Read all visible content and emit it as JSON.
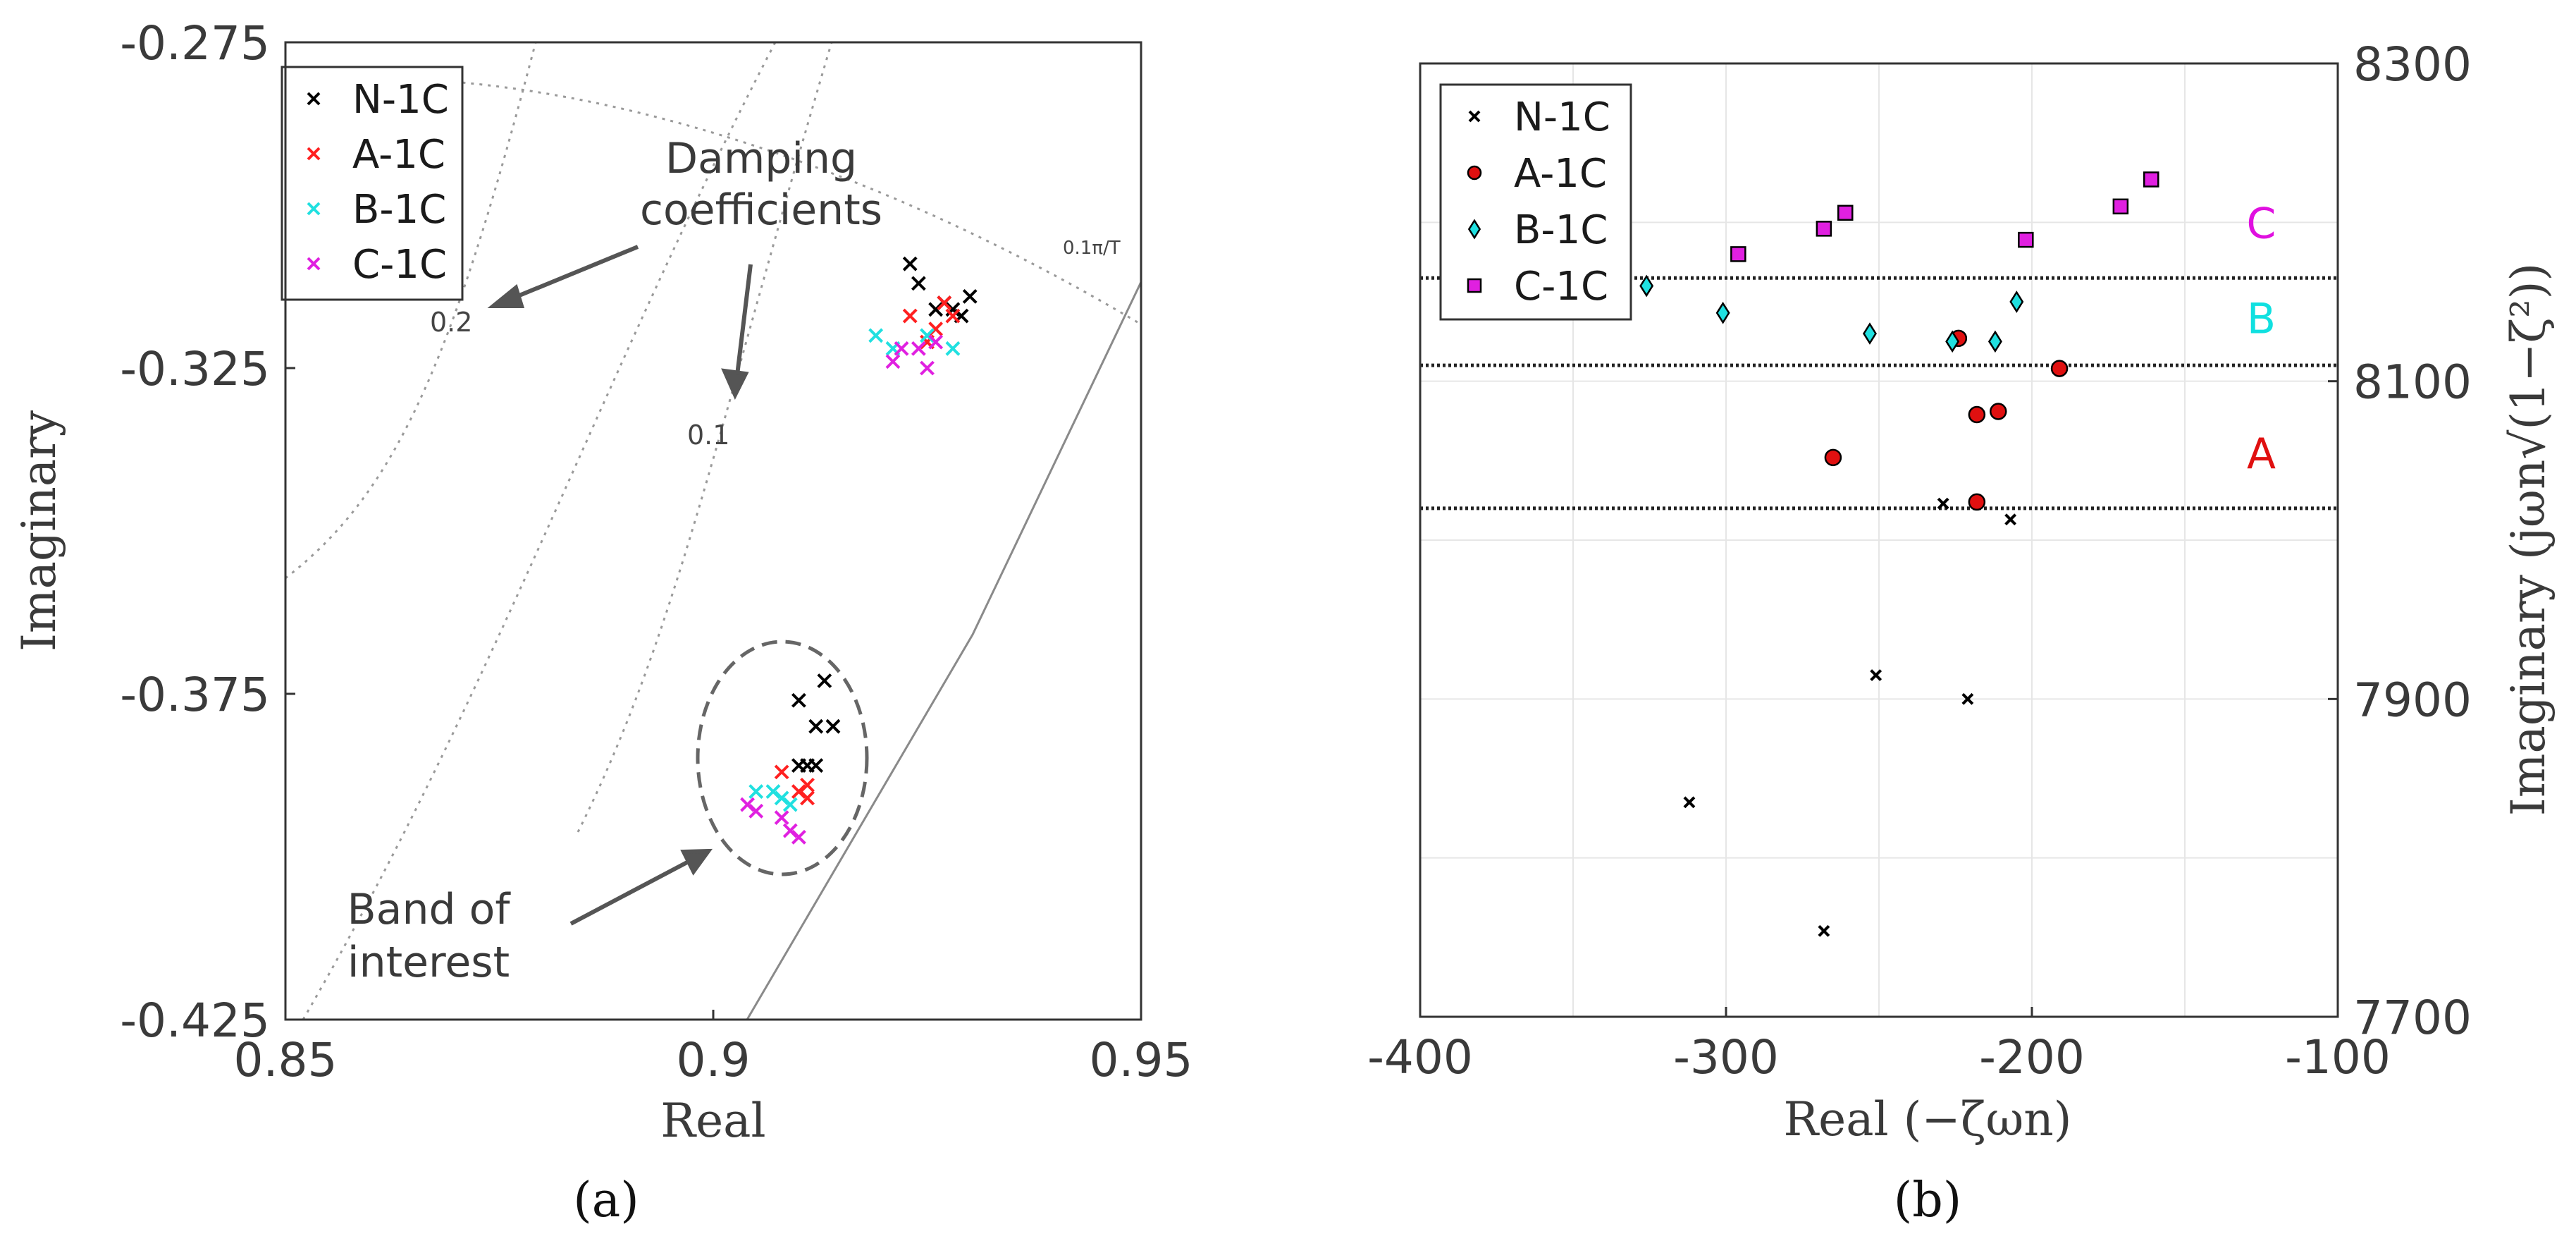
{
  "chart_data": [
    {
      "type": "scatter",
      "panel_label": "(a)",
      "xlabel": "Real",
      "ylabel": "Imaginary",
      "xlim": [
        0.85,
        0.95
      ],
      "ylim": [
        -0.425,
        -0.275
      ],
      "xticks": [
        0.85,
        0.9,
        0.95
      ],
      "xtick_labels": [
        "0.85",
        "0.9",
        "0.95"
      ],
      "yticks": [
        -0.275,
        -0.325,
        -0.375,
        -0.425
      ],
      "ytick_labels": [
        "-0.275",
        "-0.325",
        "-0.375",
        "-0.425"
      ],
      "legend_position": "top-left",
      "series": [
        {
          "name": "N-1C",
          "color": "#000000",
          "marker": "x",
          "points": [
            [
              0.923,
              -0.309
            ],
            [
              0.924,
              -0.312
            ],
            [
              0.927,
              -0.315
            ],
            [
              0.928,
              -0.316
            ],
            [
              0.929,
              -0.317
            ],
            [
              0.93,
              -0.314
            ],
            [
              0.926,
              -0.316
            ],
            [
              0.913,
              -0.373
            ],
            [
              0.91,
              -0.376
            ],
            [
              0.912,
              -0.38
            ],
            [
              0.914,
              -0.38
            ],
            [
              0.911,
              -0.386
            ],
            [
              0.912,
              -0.386
            ],
            [
              0.91,
              -0.386
            ]
          ]
        },
        {
          "name": "A-1C",
          "color": "#ff2020",
          "marker": "x",
          "points": [
            [
              0.923,
              -0.317
            ],
            [
              0.927,
              -0.315
            ],
            [
              0.928,
              -0.317
            ],
            [
              0.926,
              -0.319
            ],
            [
              0.925,
              -0.321
            ],
            [
              0.908,
              -0.387
            ],
            [
              0.911,
              -0.389
            ],
            [
              0.91,
              -0.39
            ],
            [
              0.911,
              -0.391
            ]
          ]
        },
        {
          "name": "B-1C",
          "color": "#20e0e0",
          "marker": "x",
          "points": [
            [
              0.919,
              -0.32
            ],
            [
              0.921,
              -0.322
            ],
            [
              0.925,
              -0.32
            ],
            [
              0.928,
              -0.322
            ],
            [
              0.905,
              -0.39
            ],
            [
              0.907,
              -0.39
            ],
            [
              0.908,
              -0.391
            ],
            [
              0.909,
              -0.392
            ]
          ]
        },
        {
          "name": "C-1C",
          "color": "#e020e0",
          "marker": "x",
          "points": [
            [
              0.921,
              -0.324
            ],
            [
              0.922,
              -0.322
            ],
            [
              0.924,
              -0.322
            ],
            [
              0.925,
              -0.325
            ],
            [
              0.926,
              -0.321
            ],
            [
              0.904,
              -0.392
            ],
            [
              0.905,
              -0.393
            ],
            [
              0.908,
              -0.394
            ],
            [
              0.909,
              -0.396
            ],
            [
              0.91,
              -0.397
            ]
          ]
        }
      ],
      "annotations": {
        "damping_coefficients": [
          "Damping",
          "coefficients"
        ],
        "band_of_interest": [
          "Band of",
          "interest"
        ],
        "damping_0_2": "0.2",
        "damping_0_1": "0.1",
        "freq_line": "0.1π/T"
      }
    },
    {
      "type": "scatter",
      "panel_label": "(b)",
      "xlabel": "Real (−ζωn)",
      "ylabel": "Imaginary (jωn√(1−ζ²))",
      "xlim": [
        -400,
        -100
      ],
      "ylim": [
        7700,
        8300
      ],
      "xticks": [
        -400,
        -300,
        -200,
        -100
      ],
      "xtick_labels": [
        "-400",
        "-300",
        "-200",
        "-100"
      ],
      "yticks": [
        7700,
        7900,
        8100,
        8300
      ],
      "ytick_labels": [
        "7700",
        "7900",
        "8100",
        "8300"
      ],
      "legend_position": "top-left",
      "band_boundaries": [
        8020,
        8110,
        8165
      ],
      "band_labels": [
        {
          "label": "A",
          "color": "#e01010",
          "y": 8055
        },
        {
          "label": "B",
          "color": "#10e0e0",
          "y": 8140
        },
        {
          "label": "C",
          "color": "#e010e0",
          "y": 8200
        }
      ],
      "series": [
        {
          "name": "N-1C",
          "color": "#000000",
          "marker": "x",
          "points": [
            [
              -229,
              8023
            ],
            [
              -207,
              8013
            ],
            [
              -251,
              7915
            ],
            [
              -221,
              7900
            ],
            [
              -312,
              7835
            ],
            [
              -268,
              7754
            ]
          ]
        },
        {
          "name": "A-1C",
          "color": "#e01010",
          "marker": "circle",
          "points": [
            [
              -224,
              8127
            ],
            [
              -191,
              8108
            ],
            [
              -218,
              8079
            ],
            [
              -211,
              8081
            ],
            [
              -265,
              8052
            ],
            [
              -218,
              8024
            ]
          ]
        },
        {
          "name": "B-1C",
          "color": "#20e0e0",
          "marker": "diamond",
          "points": [
            [
              -326,
              8160
            ],
            [
              -301,
              8143
            ],
            [
              -253,
              8130
            ],
            [
              -226,
              8125
            ],
            [
              -212,
              8125
            ],
            [
              -205,
              8150
            ]
          ]
        },
        {
          "name": "C-1C",
          "color": "#e020e0",
          "marker": "square",
          "points": [
            [
              -296,
              8180
            ],
            [
              -268,
              8196
            ],
            [
              -261,
              8206
            ],
            [
              -202,
              8189
            ],
            [
              -171,
              8210
            ],
            [
              -161,
              8227
            ]
          ]
        }
      ]
    }
  ]
}
